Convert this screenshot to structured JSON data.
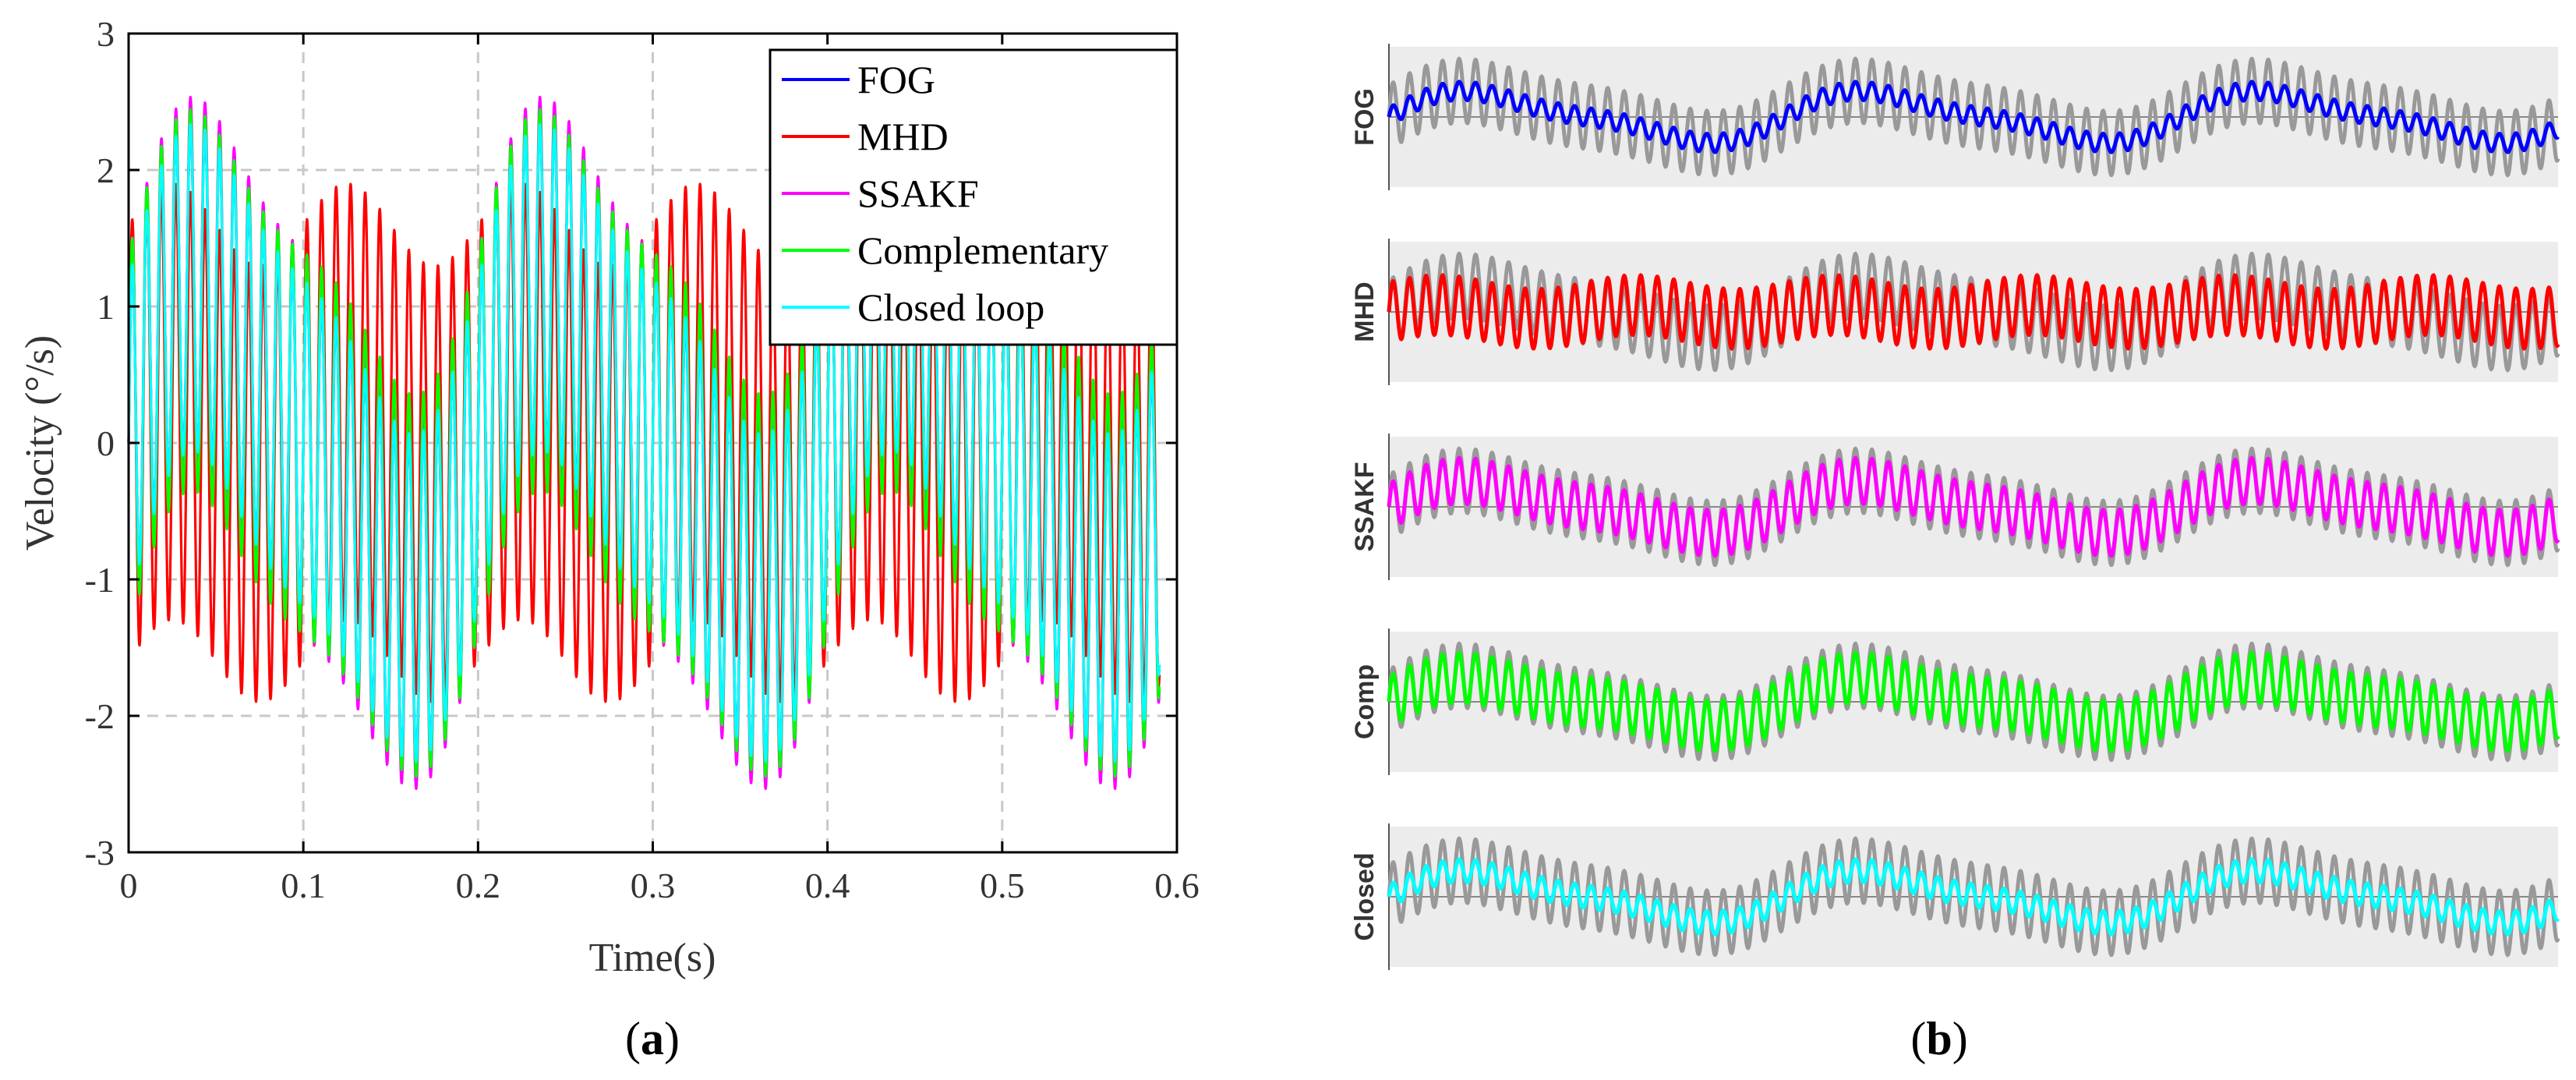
{
  "figure": {
    "panel_a_label": "a",
    "panel_b_label": "b"
  },
  "colors": {
    "FOG": "#0000ff",
    "MHD": "#ff0000",
    "SSAKF": "#ff00ff",
    "Complementary": "#00ff00",
    "Closed loop": "#00ffff",
    "reference": "#999999",
    "panel_bg": "#ececec"
  },
  "chart_data": [
    {
      "panel": "a",
      "type": "line",
      "xlabel": "Time(s)",
      "ylabel": "Velocity (°/s)",
      "xlim": [
        0,
        0.6
      ],
      "ylim": [
        -3,
        3
      ],
      "xticks": [
        "0",
        "0.1",
        "0.2",
        "0.3",
        "0.4",
        "0.5",
        "0.6"
      ],
      "yticks": [
        "-3",
        "-2",
        "-1",
        "0",
        "1",
        "2",
        "3"
      ],
      "grid": true,
      "legend_position": "top-right",
      "x_range_of_data": [
        0,
        0.59
      ],
      "series": [
        {
          "name": "FOG",
          "color": "#0000ff",
          "components": [
            {
              "freq_hz": 5,
              "amp": 1.0
            },
            {
              "freq_hz": 10,
              "amp": 0.3
            },
            {
              "freq_hz": 120,
              "amp": 1.2
            }
          ]
        },
        {
          "name": "MHD",
          "color": "#ff0000",
          "components": [
            {
              "freq_hz": 10,
              "amp": 0.3
            },
            {
              "freq_hz": 120,
              "amp": 1.6
            }
          ]
        },
        {
          "name": "SSAKF",
          "color": "#ff00ff",
          "components": [
            {
              "freq_hz": 5,
              "amp": 1.0
            },
            {
              "freq_hz": 10,
              "amp": 0.3
            },
            {
              "freq_hz": 120,
              "amp": 1.4
            }
          ]
        },
        {
          "name": "Complementary",
          "color": "#00ff00",
          "components": [
            {
              "freq_hz": 5,
              "amp": 0.9
            },
            {
              "freq_hz": 10,
              "amp": 0.3
            },
            {
              "freq_hz": 120,
              "amp": 1.4
            }
          ]
        },
        {
          "name": "Closed loop",
          "color": "#00ffff",
          "components": [
            {
              "freq_hz": 5,
              "amp": 1.0
            },
            {
              "freq_hz": 10,
              "amp": 0.3
            },
            {
              "freq_hz": 120,
              "amp": 1.2
            }
          ]
        }
      ]
    },
    {
      "panel": "b",
      "type": "line",
      "reference_series": {
        "color": "#999999",
        "components": [
          {
            "freq_hz": 5,
            "amp": 1.0
          },
          {
            "freq_hz": 10,
            "amp": 0.3
          },
          {
            "freq_hz": 120,
            "amp": 1.4
          }
        ]
      },
      "rows": [
        {
          "label": "FOG",
          "color": "#0000ff",
          "components": [
            {
              "freq_hz": 5,
              "amp": 1.0
            },
            {
              "freq_hz": 10,
              "amp": 0.3
            },
            {
              "freq_hz": 120,
              "amp": 0.4
            }
          ]
        },
        {
          "label": "MHD",
          "color": "#ff0000",
          "components": [
            {
              "freq_hz": 10,
              "amp": 0.3
            },
            {
              "freq_hz": 120,
              "amp": 1.3
            }
          ]
        },
        {
          "label": "SSAKF",
          "color": "#ff00ff",
          "components": [
            {
              "freq_hz": 5,
              "amp": 1.0
            },
            {
              "freq_hz": 10,
              "amp": 0.3
            },
            {
              "freq_hz": 120,
              "amp": 1.0
            }
          ]
        },
        {
          "label": "Comp",
          "color": "#00ff00",
          "components": [
            {
              "freq_hz": 5,
              "amp": 0.9
            },
            {
              "freq_hz": 10,
              "amp": 0.3
            },
            {
              "freq_hz": 120,
              "amp": 1.1
            }
          ]
        },
        {
          "label": "Closed",
          "color": "#00ffff",
          "components": [
            {
              "freq_hz": 5,
              "amp": 1.0
            },
            {
              "freq_hz": 10,
              "amp": 0.3
            },
            {
              "freq_hz": 120,
              "amp": 0.5
            }
          ]
        }
      ]
    }
  ]
}
